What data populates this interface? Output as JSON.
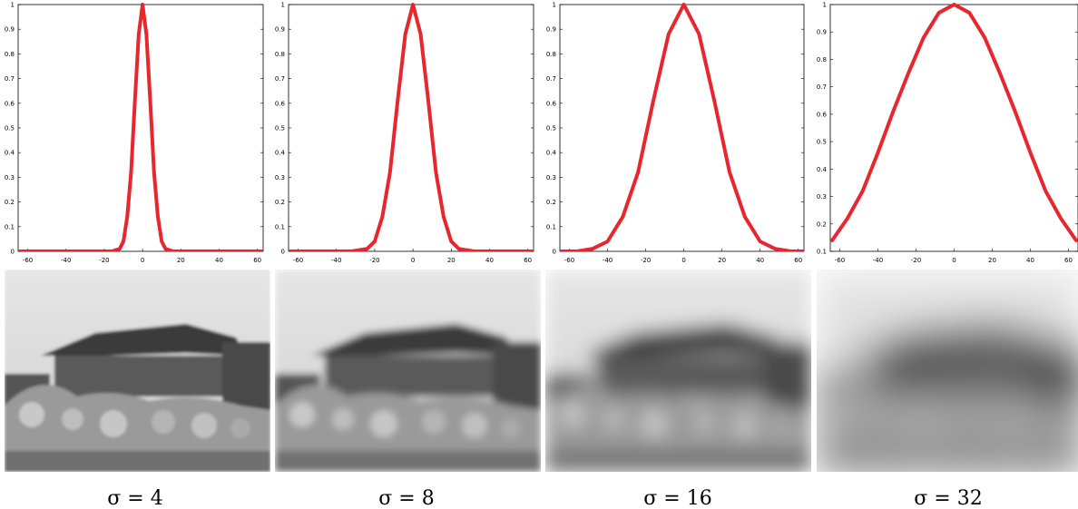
{
  "chart_data": [
    {
      "type": "line",
      "caption": "σ = 4",
      "color": "#e8262d",
      "x": [
        -64,
        -16,
        -12,
        -10,
        -8,
        -6,
        -4,
        -2,
        0,
        2,
        4,
        6,
        8,
        10,
        12,
        16,
        64
      ],
      "values": [
        0,
        0,
        0.01,
        0.04,
        0.14,
        0.32,
        0.61,
        0.88,
        1,
        0.88,
        0.61,
        0.32,
        0.14,
        0.04,
        0.01,
        0,
        0
      ],
      "xlim": [
        -65,
        63
      ],
      "ylim": [
        0,
        1
      ],
      "xticks": [
        -60,
        -40,
        -20,
        0,
        20,
        40,
        60
      ],
      "yticks": [
        0,
        0.1,
        0.2,
        0.3,
        0.4,
        0.5,
        0.6,
        0.7,
        0.8,
        0.9,
        1
      ]
    },
    {
      "type": "line",
      "caption": "σ = 8",
      "color": "#e8262d",
      "x": [
        -64,
        -32,
        -24,
        -20,
        -16,
        -12,
        -8,
        -4,
        0,
        4,
        8,
        12,
        16,
        20,
        24,
        32,
        64
      ],
      "values": [
        0,
        0,
        0.01,
        0.04,
        0.14,
        0.32,
        0.61,
        0.88,
        1,
        0.88,
        0.61,
        0.32,
        0.14,
        0.04,
        0.01,
        0,
        0
      ],
      "xlim": [
        -65,
        63
      ],
      "ylim": [
        0,
        1
      ],
      "xticks": [
        -60,
        -40,
        -20,
        0,
        20,
        40,
        60
      ],
      "yticks": [
        0,
        0.1,
        0.2,
        0.3,
        0.4,
        0.5,
        0.6,
        0.7,
        0.8,
        0.9,
        1
      ]
    },
    {
      "type": "line",
      "caption": "σ = 16",
      "color": "#e8262d",
      "x": [
        -64,
        -56,
        -48,
        -40,
        -32,
        -24,
        -16,
        -8,
        0,
        8,
        16,
        24,
        32,
        40,
        48,
        56,
        64
      ],
      "values": [
        0,
        0,
        0.01,
        0.04,
        0.14,
        0.32,
        0.61,
        0.88,
        1,
        0.88,
        0.61,
        0.32,
        0.14,
        0.04,
        0.01,
        0,
        0
      ],
      "xlim": [
        -65,
        63
      ],
      "ylim": [
        0,
        1
      ],
      "xticks": [
        -60,
        -40,
        -20,
        0,
        20,
        40,
        60
      ],
      "yticks": [
        0,
        0.1,
        0.2,
        0.3,
        0.4,
        0.5,
        0.6,
        0.7,
        0.8,
        0.9,
        1
      ]
    },
    {
      "type": "line",
      "caption": "σ = 32",
      "color": "#e8262d",
      "x": [
        -64,
        -56,
        -48,
        -40,
        -32,
        -24,
        -16,
        -8,
        0,
        8,
        16,
        24,
        32,
        40,
        48,
        56,
        64
      ],
      "values": [
        0.14,
        0.22,
        0.32,
        0.46,
        0.61,
        0.75,
        0.88,
        0.97,
        1,
        0.97,
        0.88,
        0.75,
        0.61,
        0.46,
        0.32,
        0.22,
        0.14
      ],
      "xlim": [
        -65,
        65
      ],
      "ylim": [
        0.1,
        1
      ],
      "xticks": [
        -60,
        -40,
        -20,
        0,
        20,
        40,
        60
      ],
      "yticks": [
        0.1,
        0.2,
        0.3,
        0.4,
        0.5,
        0.6,
        0.7,
        0.8,
        0.9,
        1
      ]
    }
  ]
}
